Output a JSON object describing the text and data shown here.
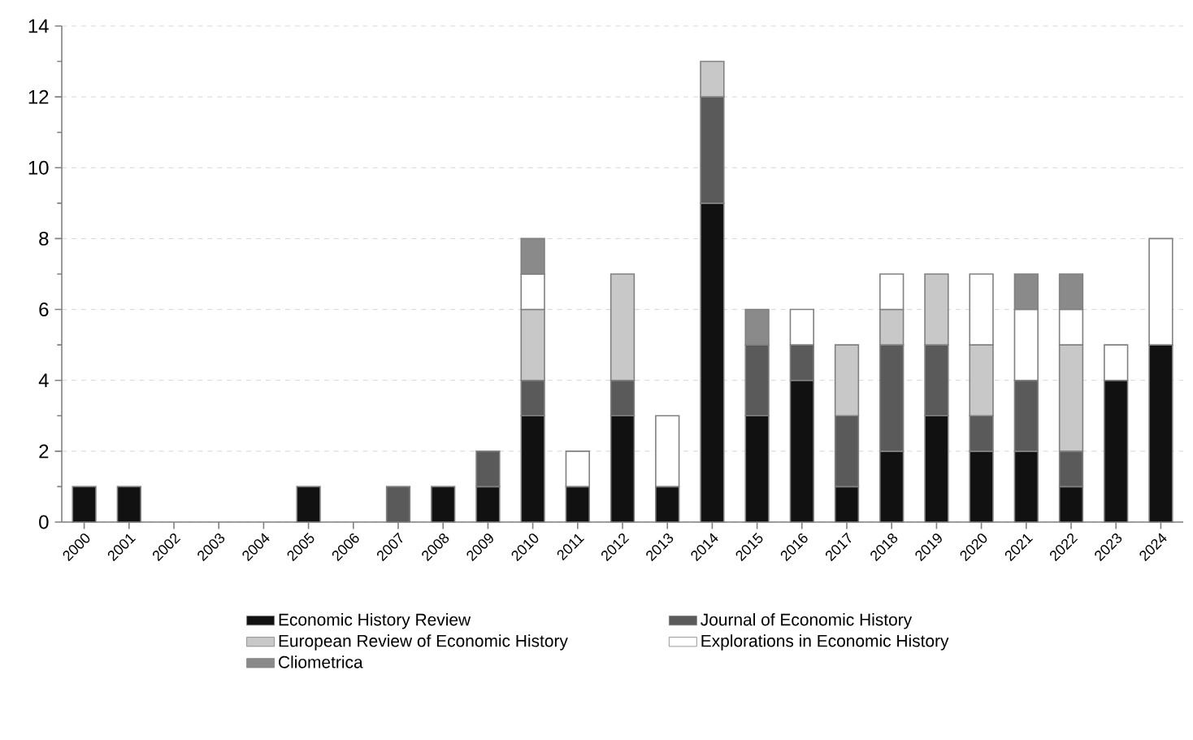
{
  "chart_data": {
    "type": "bar",
    "stacked": true,
    "categories": [
      "2000",
      "2001",
      "2002",
      "2003",
      "2004",
      "2005",
      "2006",
      "2007",
      "2008",
      "2009",
      "2010",
      "2011",
      "2012",
      "2013",
      "2014",
      "2015",
      "2016",
      "2017",
      "2018",
      "2019",
      "2020",
      "2021",
      "2022",
      "2023",
      "2024"
    ],
    "series": [
      {
        "name": "Economic History Review",
        "color": "#111111",
        "values": [
          1,
          1,
          0,
          0,
          0,
          1,
          0,
          0,
          1,
          1,
          3,
          1,
          3,
          1,
          9,
          3,
          4,
          1,
          2,
          3,
          2,
          2,
          1,
          4,
          5
        ]
      },
      {
        "name": "Journal of Economic History",
        "color": "#5a5a5a",
        "values": [
          0,
          0,
          0,
          0,
          0,
          0,
          0,
          1,
          0,
          1,
          1,
          0,
          1,
          0,
          3,
          2,
          1,
          2,
          3,
          2,
          1,
          2,
          1,
          0,
          0
        ]
      },
      {
        "name": "European Review of Economic History",
        "color": "#c8c8c8",
        "values": [
          0,
          0,
          0,
          0,
          0,
          0,
          0,
          0,
          0,
          0,
          2,
          0,
          3,
          0,
          1,
          0,
          0,
          2,
          1,
          2,
          2,
          0,
          3,
          0,
          0
        ]
      },
      {
        "name": "Explorations in Economic History",
        "color": "#ffffff",
        "values": [
          0,
          0,
          0,
          0,
          0,
          0,
          0,
          0,
          0,
          0,
          1,
          1,
          0,
          2,
          0,
          0,
          1,
          0,
          1,
          0,
          2,
          2,
          1,
          1,
          3
        ]
      },
      {
        "name": "Cliometrica",
        "color": "#8a8a8a",
        "values": [
          0,
          0,
          0,
          0,
          0,
          0,
          0,
          0,
          0,
          0,
          1,
          0,
          0,
          0,
          0,
          1,
          0,
          0,
          0,
          0,
          0,
          1,
          1,
          0,
          0
        ]
      }
    ],
    "ylim": [
      0,
      14
    ],
    "yticks": [
      0,
      2,
      4,
      6,
      8,
      10,
      12,
      14
    ],
    "grid": "y",
    "legend": "bottom"
  }
}
